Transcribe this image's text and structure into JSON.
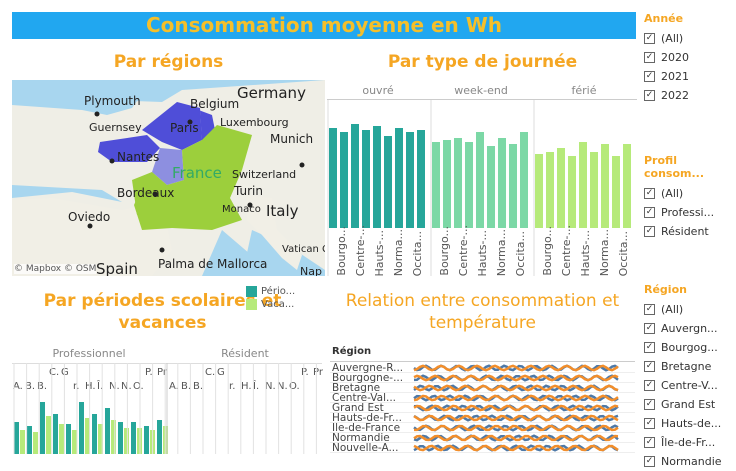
{
  "title": "Consommation moyenne en Wh",
  "sections": {
    "regions": "Par régions",
    "journee": "Par type de journée",
    "periodes": "Par périodes scolaires et vacances",
    "relation": "Relation entre consommation et température"
  },
  "map": {
    "labels": [
      "Plymouth",
      "Belgium",
      "Germany",
      "Luxembourg",
      "Guernsey",
      "Paris",
      "Munich",
      "Nantes",
      "France",
      "Switzerland",
      "Bordeaux",
      "Turin",
      "Monaco",
      "Oviedo",
      "Italy",
      "Vatican City",
      "Spain",
      "Palma de Mallorca",
      "Nap"
    ],
    "attribution": "© Mapbox © OSM",
    "colors": {
      "dark": "#4f4ed8",
      "mid": "#8d8fe0",
      "green": "#9ccf3c"
    }
  },
  "journee_chart": {
    "facets": [
      "ouvré",
      "week-end",
      "férié"
    ],
    "ticks": [
      "Bourgo...",
      "Centre-...",
      "Hauts-...",
      "Norma...",
      "Occita..."
    ],
    "colors": {
      "ouvré": "#26a69a",
      "week-end": "#7cd8a6",
      "férié": "#b6ea7a"
    }
  },
  "periodes_chart": {
    "facets": [
      "Professionnel",
      "Résident"
    ],
    "ticks": [
      "A.",
      "B.",
      "B.",
      "C.",
      "G",
      "r.",
      "H.",
      "Î.",
      "N.",
      "N.",
      "O.",
      "P.",
      "Pr"
    ],
    "legend": [
      {
        "label": "Pério...",
        "color": "#26a69a"
      },
      {
        "label": "Vaca...",
        "color": "#b6ea7a"
      }
    ]
  },
  "relation_chart": {
    "header": "Région",
    "regions": [
      "Auvergne-R...",
      "Bourgogne-...",
      "Bretagne",
      "Centre-Val...",
      "Grand Est",
      "Hauts-de-Fr...",
      "Île-de-France",
      "Normandie",
      "Nouvelle-A..."
    ],
    "colors": {
      "blue": "#4e79a7",
      "orange": "#f28e2b"
    }
  },
  "filters": {
    "annee": {
      "title": "Année",
      "items": [
        "(All)",
        "2020",
        "2021",
        "2022"
      ]
    },
    "profil": {
      "title": "Profil consom...",
      "items": [
        "(All)",
        "Professi...",
        "Résident"
      ]
    },
    "region": {
      "title": "Région",
      "items": [
        "(All)",
        "Auvergn...",
        "Bourgog...",
        "Bretagne",
        "Centre-V...",
        "Grand Est",
        "Hauts-de...",
        "Île-de-Fr...",
        "Normandie"
      ]
    }
  }
}
